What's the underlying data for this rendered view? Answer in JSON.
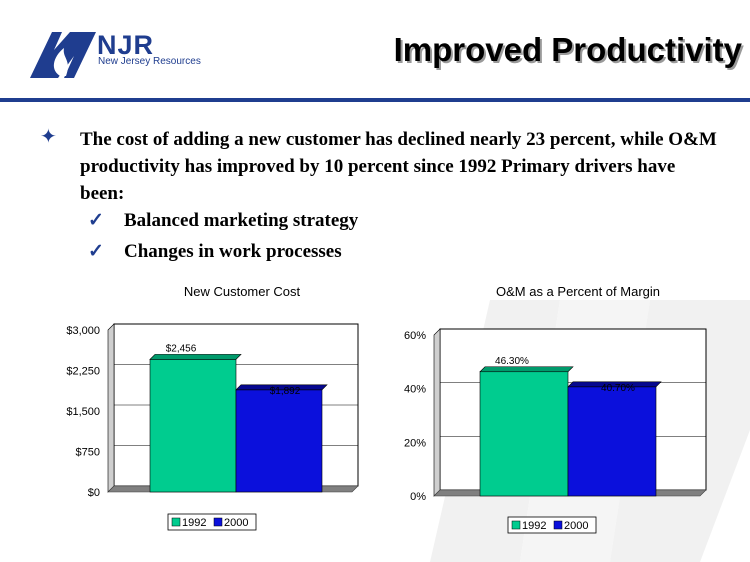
{
  "slide": {
    "title": "Improved Productivity",
    "logo_text": "NJR",
    "logo_subtext": "New Jersey Resources",
    "body": "The cost of adding a new customer has declined nearly 23 percent, while O&M productivity has improved by 10 percent since 1992 Primary drivers have been:",
    "sub_bullets": [
      "Balanced marketing strategy",
      "Changes in work processes"
    ],
    "colors": {
      "brand_blue": "#1f3d8f",
      "series_1992": "#00cc8f",
      "series_2000": "#0b10dc"
    }
  },
  "chart_data": [
    {
      "type": "bar",
      "title": "New Customer Cost",
      "categories": [
        "1992",
        "2000"
      ],
      "values": [
        2456,
        1892
      ],
      "data_labels": [
        "$2,456",
        "$1,892"
      ],
      "yticks": [
        0,
        750,
        1500,
        2250,
        3000
      ],
      "ytick_labels": [
        "$0",
        "$750",
        "$1,500",
        "$2,250",
        "$3,000"
      ],
      "ylim": [
        0,
        3000
      ],
      "legend": [
        "1992",
        "2000"
      ],
      "legend_position": "bottom",
      "grid": true
    },
    {
      "type": "bar",
      "title": "O&M as a Percent of Margin",
      "categories": [
        "1992",
        "2000"
      ],
      "values": [
        46.3,
        40.7
      ],
      "data_labels": [
        "46.30%",
        "40.70%"
      ],
      "yticks": [
        0,
        20,
        40,
        60
      ],
      "ytick_labels": [
        "0%",
        "20%",
        "40%",
        "60%"
      ],
      "ylim": [
        0,
        60
      ],
      "legend": [
        "1992",
        "2000"
      ],
      "legend_position": "bottom",
      "grid": true
    }
  ]
}
